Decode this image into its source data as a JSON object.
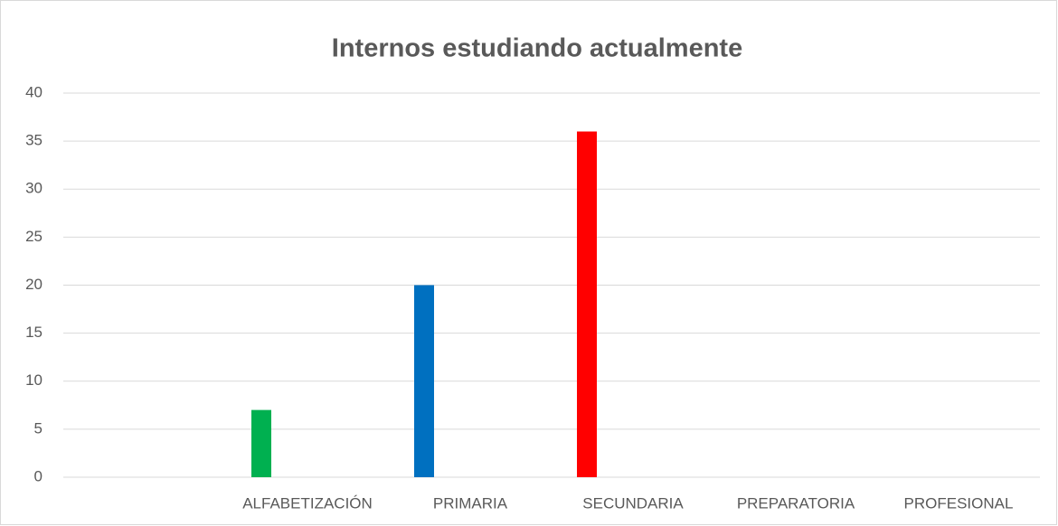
{
  "chart_data": {
    "type": "bar",
    "title": "Internos estudiando actualmente",
    "categories": [
      null,
      "ALFABETIZACIÓN",
      "PRIMARIA",
      "SECUNDARIA",
      "PREPARATORIA",
      "PROFESIONAL"
    ],
    "values": [
      null,
      7,
      20,
      36,
      0,
      0
    ],
    "colors": [
      "#00b050",
      "#00b050",
      "#0070c0",
      "#ff0000",
      "#ffc000",
      "#7030a0"
    ],
    "ylim": [
      0,
      40
    ],
    "yticks": [
      0,
      5,
      10,
      15,
      20,
      25,
      30,
      35,
      40
    ],
    "grid": true
  }
}
